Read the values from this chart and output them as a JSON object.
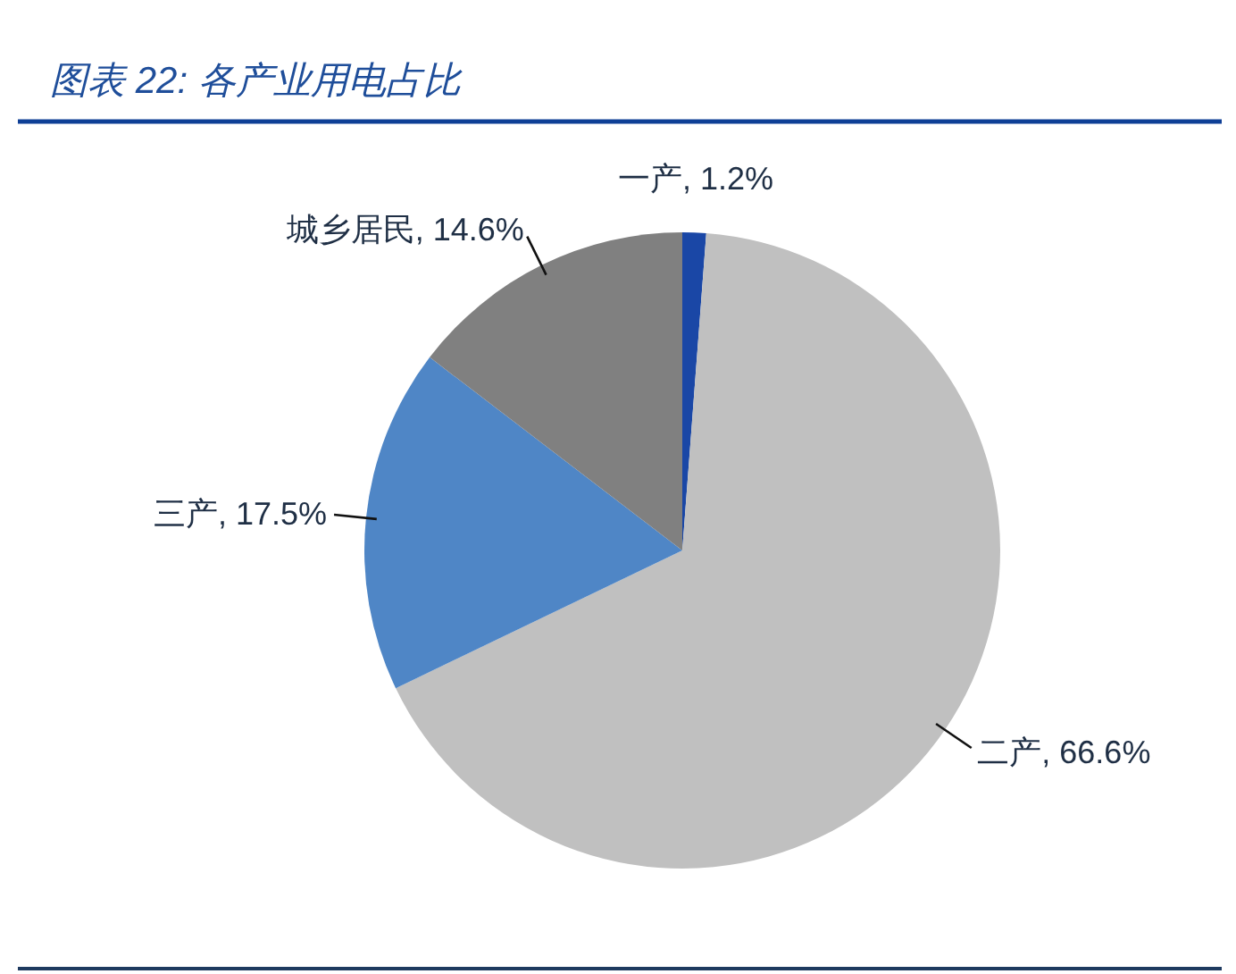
{
  "chart_data": {
    "type": "pie",
    "title": "图表 22: 各产业用电占比",
    "categories": [
      "一产",
      "二产",
      "三产",
      "城乡居民"
    ],
    "values": [
      1.2,
      66.6,
      17.5,
      14.6
    ],
    "colors": [
      "#1a47a6",
      "#c0c0c0",
      "#4f86c6",
      "#808080"
    ],
    "value_labels": [
      "1.2%",
      "66.6%",
      "17.5%",
      "14.6%"
    ]
  }
}
